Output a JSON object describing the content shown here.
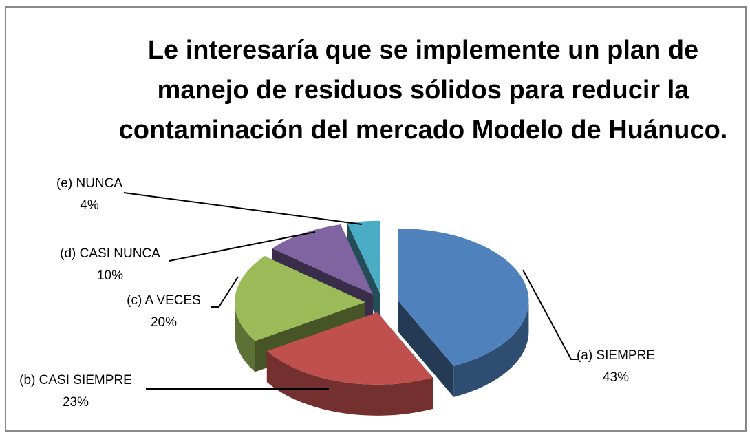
{
  "chart_data": {
    "type": "pie",
    "title": "Le interesaría que se implemente un plan de manejo de residuos sólidos para reducir la contaminación del mercado Modelo de Huánuco.",
    "categories": [
      "(a) SIEMPRE",
      "(b) CASI SIEMPRE",
      "(c) A VECES",
      "(d) CASI NUNCA",
      "(e) NUNCA"
    ],
    "values": [
      43,
      23,
      20,
      10,
      4
    ],
    "value_labels": [
      "43%",
      "23%",
      "20%",
      "10%",
      "4%"
    ],
    "colors": [
      "#4f81bd",
      "#c0504d",
      "#9bbb59",
      "#8064a2",
      "#4bacc6"
    ]
  }
}
